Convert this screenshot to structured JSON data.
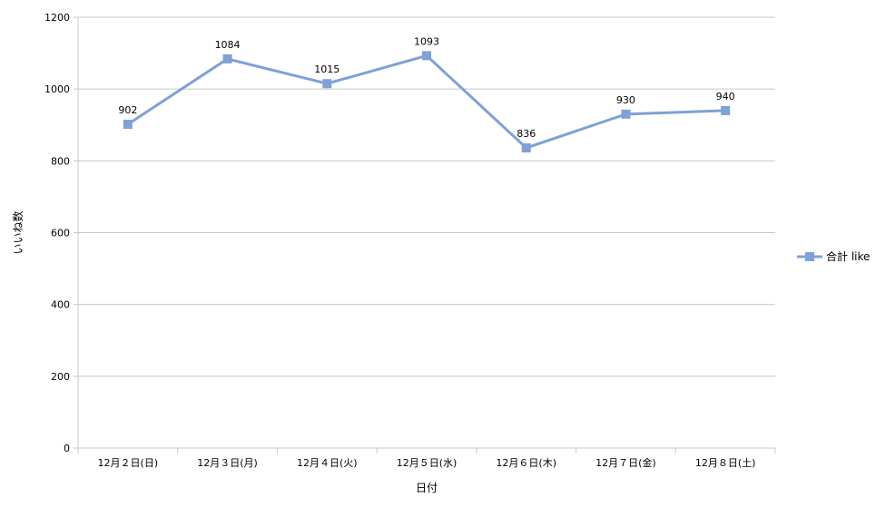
{
  "colors": {
    "series": "#7ea1d6",
    "grid": "#c8c8c8",
    "axis": "#000000",
    "background": "#ffffff"
  },
  "chart_data": {
    "type": "line",
    "title": "",
    "xlabel": "日付",
    "ylabel": "いいね数",
    "categories": [
      "12月２日(日)",
      "12月３日(月)",
      "12月４日(火)",
      "12月５日(水)",
      "12月６日(木)",
      "12月７日(金)",
      "12月８日(土)"
    ],
    "series": [
      {
        "name": "合計 like",
        "values": [
          902,
          1084,
          1015,
          1093,
          836,
          930,
          940
        ],
        "marker": "square",
        "data_labels": true
      }
    ],
    "ylim": [
      0,
      1200
    ],
    "yticks": [
      0,
      200,
      400,
      600,
      800,
      1000,
      1200
    ],
    "grid": true,
    "legend": "right"
  }
}
